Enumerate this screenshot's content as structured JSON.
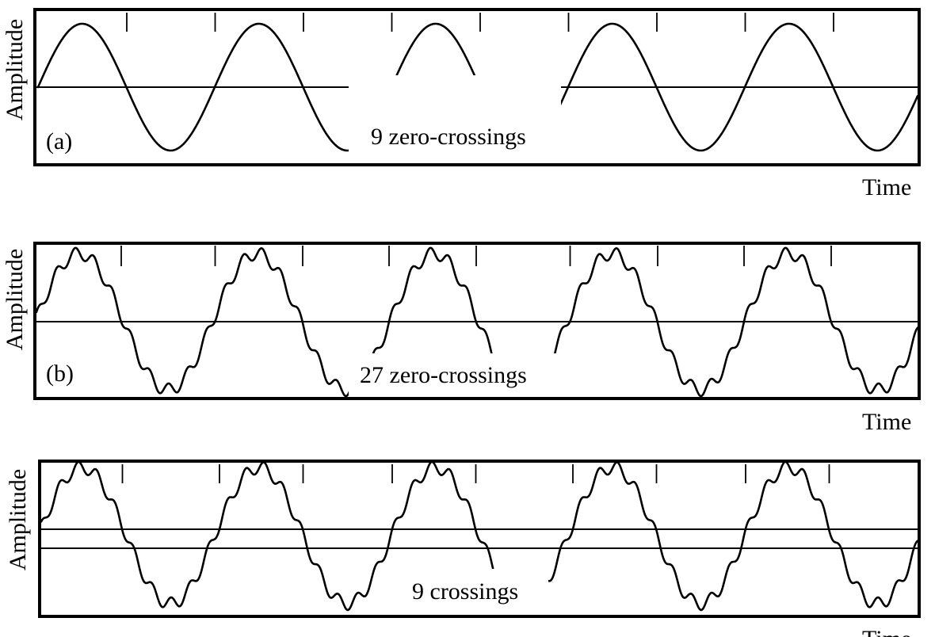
{
  "panels": [
    {
      "id": "a",
      "label": "(a)",
      "ylabel": "Amplitude",
      "xlabel": "Time",
      "caption": "9 zero-crossings",
      "ripple": false,
      "threshold": false,
      "crossings": 9
    },
    {
      "id": "b",
      "label": "(b)",
      "ylabel": "Amplitude",
      "xlabel": "Time",
      "caption": "27 zero-crossings",
      "ripple": true,
      "threshold": false,
      "crossings": 27
    },
    {
      "id": "c",
      "label": "",
      "ylabel": "Amplitude",
      "xlabel": "Time",
      "caption": "9 crossings",
      "ripple": true,
      "threshold": true,
      "crossings": 9
    }
  ],
  "colors": {
    "ink": "#000000",
    "background": "#ffffff"
  }
}
